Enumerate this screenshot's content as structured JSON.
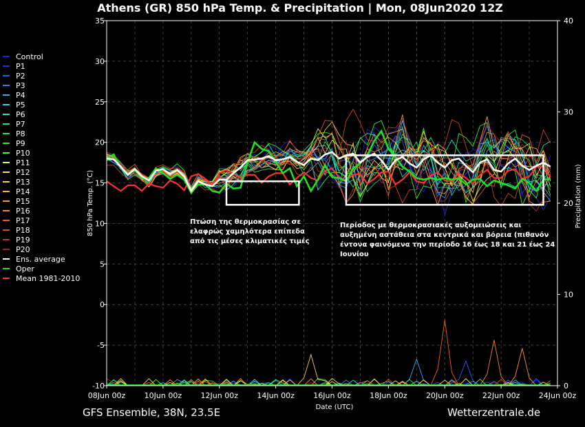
{
  "chart_data": {
    "type": "line",
    "title": "Athens  (GR)  850 hPa Temp. & Precipitation | Mon, 08Jun2020 12Z",
    "xlabel": "Date (UTC)",
    "ylabel": "850 hPa Temp. (°C)",
    "y2label": "Precipitation (mm)",
    "ylim": [
      -10,
      35
    ],
    "y2lim": [
      0,
      40
    ],
    "yticks": [
      35,
      30,
      25,
      20,
      15,
      10,
      5,
      0,
      -5,
      -10
    ],
    "y2ticks": [
      40,
      30,
      20,
      10,
      0
    ],
    "xlim": [
      0,
      64
    ],
    "xtick_labels": [
      "08Jun 00z",
      "10Jun 00z",
      "12Jun 00z",
      "14Jun 00z",
      "16Jun 00z",
      "18Jun 00z",
      "20Jun 00z",
      "22Jun 00z",
      "24Jun 00z"
    ],
    "footer_left": "GFS Ensemble, 38N, 23.5E",
    "footer_right": "Wetterzentrale.de",
    "legend": [
      {
        "name": "Control",
        "color": "#1a1aff"
      },
      {
        "name": "P1",
        "color": "#2a2adf"
      },
      {
        "name": "P2",
        "color": "#2a5aff"
      },
      {
        "name": "P3",
        "color": "#2a8aee"
      },
      {
        "name": "P4",
        "color": "#2ab0ff"
      },
      {
        "name": "P5",
        "color": "#30d0ff"
      },
      {
        "name": "P6",
        "color": "#20e8c8"
      },
      {
        "name": "P7",
        "color": "#20e090"
      },
      {
        "name": "P8",
        "color": "#20e060"
      },
      {
        "name": "P9",
        "color": "#30f030"
      },
      {
        "name": "P10",
        "color": "#40ff20"
      },
      {
        "name": "P11",
        "color": "#e8ff30"
      },
      {
        "name": "P12",
        "color": "#ffe040"
      },
      {
        "name": "P13",
        "color": "#ffd040"
      },
      {
        "name": "P14",
        "color": "#ffb030"
      },
      {
        "name": "P15",
        "color": "#ff9830"
      },
      {
        "name": "P16",
        "color": "#ff8030"
      },
      {
        "name": "P17",
        "color": "#f06028"
      },
      {
        "name": "P18",
        "color": "#d84828"
      },
      {
        "name": "P19",
        "color": "#c03028"
      },
      {
        "name": "P20",
        "color": "#a82020"
      },
      {
        "name": "Ens. average",
        "color": "#ffffff"
      },
      {
        "name": "Oper",
        "color": "#20e020"
      },
      {
        "name": "Mean 1981-2010",
        "color": "#ff3030"
      }
    ],
    "series": {
      "mean_1981_2010": [
        15.2,
        14.6,
        14.0,
        14.7,
        14.7,
        14.0,
        14.9,
        14.6,
        14.4,
        15.3,
        14.9,
        14.1,
        15.8,
        16.1,
        15.5,
        14.8,
        16.2,
        16.6,
        16.1,
        15.6,
        16.0,
        16.0,
        15.0,
        15.8,
        16.2,
        16.2,
        14.8,
        15.6,
        16.3,
        15.6,
        15.3,
        16.5,
        16.8,
        15.7,
        15.3,
        16.0,
        16.1,
        14.9,
        15.5,
        16.3,
        16.4,
        14.8,
        15.4,
        16.3,
        15.2,
        15.0,
        15.9,
        16.3,
        15.3,
        15.2,
        16.2,
        15.6,
        14.9,
        16.0,
        16.6,
        15.6,
        15.6,
        16.5,
        16.7,
        15.5,
        15.8,
        17.0,
        17.0,
        15.7
      ],
      "ens_average": [
        18.0,
        17.9,
        17.0,
        16.0,
        16.7,
        15.8,
        15.3,
        16.5,
        16.7,
        16.1,
        16.6,
        15.8,
        14.0,
        15.2,
        14.8,
        14.6,
        15.4,
        15.4,
        16.2,
        16.9,
        17.8,
        17.9,
        18.0,
        18.3,
        17.8,
        17.9,
        18.2,
        17.6,
        17.2,
        18.0,
        17.8,
        18.5,
        18.8,
        18.0,
        18.4,
        18.6,
        17.5,
        18.2,
        18.6,
        17.8,
        16.6,
        17.8,
        18.2,
        17.4,
        16.9,
        17.9,
        18.4,
        17.5,
        16.9,
        17.8,
        18.0,
        17.1,
        16.3,
        17.5,
        17.9,
        16.6,
        16.4,
        17.4,
        18.0,
        17.1,
        16.6,
        17.1,
        17.5,
        17.0
      ],
      "oper": [
        18.0,
        18.5,
        16.8,
        16.2,
        16.6,
        15.6,
        15.6,
        16.8,
        16.2,
        15.5,
        16.0,
        15.4,
        13.8,
        14.8,
        14.8,
        14.0,
        13.8,
        14.9,
        14.3,
        14.4,
        17.5,
        20.0,
        19.2,
        18.9,
        17.6,
        16.2,
        16.8,
        14.6,
        15.8,
        14.0,
        15.4,
        17.2,
        15.7,
        15.6,
        15.2,
        16.8,
        17.4,
        18.4,
        20.2,
        21.4,
        19.2,
        18.2,
        17.0,
        16.4,
        15.6,
        15.4,
        15.6,
        15.4,
        15.6,
        15.4,
        15.6,
        14.8,
        15.4,
        15.5,
        14.6,
        15.3,
        15.0,
        14.7,
        14.3,
        15.5,
        15.0,
        14.0,
        15.4,
        15.5
      ]
    },
    "precip_peaks_mm": [
      {
        "member": "P17",
        "day_index": 48,
        "value": 7.2
      },
      {
        "member": "P16",
        "day_index": 55,
        "value": 5.0
      },
      {
        "member": "P15",
        "day_index": 59,
        "value": 4.1
      },
      {
        "member": "P2",
        "day_index": 51,
        "value": 2.7
      },
      {
        "member": "P4",
        "day_index": 44,
        "value": 2.9
      },
      {
        "member": "P13",
        "day_index": 29,
        "value": 3.4
      }
    ],
    "annotations": [
      {
        "id": "drop",
        "lines": [
          "Πτώση της θερμοκρασίας σε",
          "ελαφρώς χαμηλότερα επίπεδα",
          "από τις μέσες κλιματικές τιμές"
        ],
        "box_x": [
          17.0,
          27.3
        ],
        "box_y": [
          12.3,
          15.2
        ]
      },
      {
        "id": "period",
        "lines": [
          "Περίοδος με θερμοκρασιακές αυξομειώσεις και",
          "αυξημένη αστάθεια στα κεντρικά και βόρεια (πιθανόν",
          "έντονα φαινόμενα την περίοδο 16 έως 18 και 21 έως 24",
          "Ιουνίου"
        ],
        "box_x": [
          34.0,
          62.0
        ],
        "box_y": [
          12.3,
          18.4
        ]
      }
    ]
  }
}
